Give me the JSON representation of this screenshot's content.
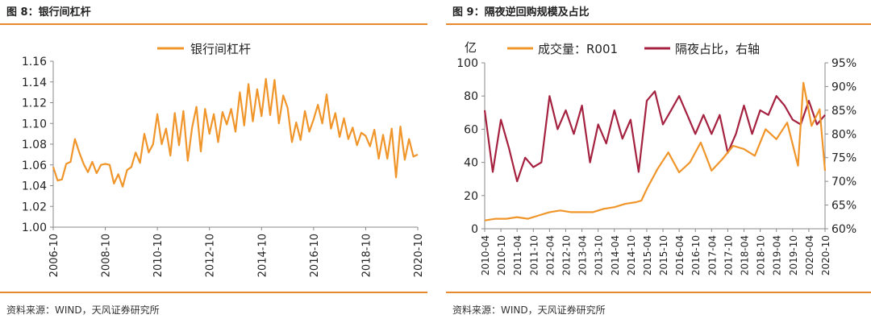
{
  "figures": [
    {
      "title": "图 8：银行间杠杆",
      "source": "资料来源：WIND，天风证券研究所",
      "chart_data": {
        "type": "line",
        "title": "",
        "legend_position": "top-center",
        "grid": false,
        "y_axis": {
          "ylim": [
            1.0,
            1.16
          ],
          "ticks": [
            1.0,
            1.02,
            1.04,
            1.06,
            1.08,
            1.1,
            1.12,
            1.14,
            1.16
          ],
          "tick_labels": [
            "1.00",
            "1.02",
            "1.04",
            "1.06",
            "1.08",
            "1.10",
            "1.12",
            "1.14",
            "1.16"
          ]
        },
        "x_axis": {
          "range": [
            "2006-10",
            "2020-10"
          ],
          "tick_labels": [
            "2006-10",
            "2008-10",
            "2010-10",
            "2012-10",
            "2014-10",
            "2016-10",
            "2018-10",
            "2020-10"
          ]
        },
        "series": [
          {
            "name": "银行间杠杆",
            "color": "#f0952a",
            "x": [
              "2006-10",
              "2006-12",
              "2007-02",
              "2007-04",
              "2007-06",
              "2007-08",
              "2007-10",
              "2007-12",
              "2008-02",
              "2008-04",
              "2008-06",
              "2008-08",
              "2008-10",
              "2008-12",
              "2009-02",
              "2009-04",
              "2009-06",
              "2009-08",
              "2009-10",
              "2009-12",
              "2010-02",
              "2010-04",
              "2010-06",
              "2010-08",
              "2010-10",
              "2010-12",
              "2011-02",
              "2011-04",
              "2011-06",
              "2011-08",
              "2011-10",
              "2011-12",
              "2012-02",
              "2012-04",
              "2012-06",
              "2012-08",
              "2012-10",
              "2012-12",
              "2013-02",
              "2013-04",
              "2013-06",
              "2013-08",
              "2013-10",
              "2013-12",
              "2014-02",
              "2014-04",
              "2014-06",
              "2014-08",
              "2014-10",
              "2014-12",
              "2015-02",
              "2015-04",
              "2015-06",
              "2015-08",
              "2015-10",
              "2015-12",
              "2016-02",
              "2016-04",
              "2016-06",
              "2016-08",
              "2016-10",
              "2016-12",
              "2017-02",
              "2017-04",
              "2017-06",
              "2017-08",
              "2017-10",
              "2017-12",
              "2018-02",
              "2018-04",
              "2018-06",
              "2018-08",
              "2018-10",
              "2018-12",
              "2019-02",
              "2019-04",
              "2019-06",
              "2019-08",
              "2019-10",
              "2019-12",
              "2020-02",
              "2020-04",
              "2020-06",
              "2020-08",
              "2020-10"
            ],
            "values": [
              1.058,
              1.045,
              1.046,
              1.061,
              1.063,
              1.085,
              1.072,
              1.061,
              1.053,
              1.063,
              1.052,
              1.06,
              1.061,
              1.06,
              1.042,
              1.051,
              1.039,
              1.055,
              1.058,
              1.072,
              1.062,
              1.09,
              1.072,
              1.08,
              1.109,
              1.08,
              1.095,
              1.069,
              1.11,
              1.079,
              1.112,
              1.064,
              1.096,
              1.116,
              1.073,
              1.114,
              1.09,
              1.109,
              1.082,
              1.111,
              1.099,
              1.114,
              1.092,
              1.13,
              1.098,
              1.138,
              1.102,
              1.133,
              1.107,
              1.143,
              1.108,
              1.142,
              1.1,
              1.127,
              1.115,
              1.082,
              1.101,
              1.084,
              1.112,
              1.092,
              1.104,
              1.118,
              1.1,
              1.128,
              1.095,
              1.11,
              1.087,
              1.105,
              1.085,
              1.096,
              1.079,
              1.091,
              1.088,
              1.078,
              1.094,
              1.066,
              1.089,
              1.066,
              1.095,
              1.048,
              1.097,
              1.065,
              1.085,
              1.068,
              1.07
            ]
          }
        ]
      }
    },
    {
      "title": "图 9：隔夜逆回购规模及占比",
      "source": "资料来源：WIND，天风证券研究所",
      "chart_data": {
        "type": "line",
        "title": "",
        "legend_position": "top-center",
        "grid": false,
        "y_axis_left": {
          "unit_label": "亿",
          "ylim": [
            0,
            100
          ],
          "ticks": [
            0,
            20,
            40,
            60,
            80,
            100
          ],
          "tick_labels": [
            "0",
            "20",
            "40",
            "60",
            "80",
            "100"
          ]
        },
        "y_axis_right": {
          "ylim": [
            60,
            95
          ],
          "ticks": [
            60,
            65,
            70,
            75,
            80,
            85,
            90,
            95
          ],
          "tick_labels": [
            "60%",
            "65%",
            "70%",
            "75%",
            "80%",
            "85%",
            "90%",
            "95%"
          ]
        },
        "x_axis": {
          "range": [
            "2010-04",
            "2020-10"
          ],
          "tick_labels": [
            "2010-04",
            "2010-10",
            "2011-04",
            "2011-10",
            "2012-04",
            "2012-10",
            "2013-04",
            "2013-10",
            "2014-04",
            "2014-10",
            "2015-04",
            "2015-10",
            "2016-04",
            "2016-10",
            "2017-04",
            "2017-10",
            "2018-04",
            "2018-10",
            "2019-04",
            "2019-10",
            "2020-04",
            "2020-10"
          ]
        },
        "series": [
          {
            "name": "成交量：R001",
            "axis": "left",
            "color": "#f0952a",
            "x": [
              "2010-04",
              "2010-08",
              "2010-12",
              "2011-04",
              "2011-08",
              "2011-12",
              "2012-04",
              "2012-08",
              "2012-12",
              "2013-04",
              "2013-08",
              "2013-12",
              "2014-04",
              "2014-08",
              "2014-12",
              "2015-02",
              "2015-04",
              "2015-08",
              "2015-12",
              "2016-04",
              "2016-08",
              "2016-12",
              "2017-04",
              "2017-08",
              "2017-12",
              "2018-04",
              "2018-08",
              "2018-12",
              "2019-04",
              "2019-08",
              "2019-12",
              "2020-02",
              "2020-05",
              "2020-08",
              "2020-10"
            ],
            "values": [
              5,
              6,
              6,
              7,
              6,
              8,
              10,
              11,
              10,
              10,
              10,
              12,
              13,
              15,
              16,
              17,
              24,
              36,
              46,
              34,
              40,
              52,
              35,
              42,
              50,
              48,
              44,
              60,
              54,
              64,
              38,
              88,
              62,
              72,
              35
            ]
          },
          {
            "name": "隔夜占比，右轴",
            "axis": "right",
            "color": "#a52140",
            "x": [
              "2010-04",
              "2010-07",
              "2010-10",
              "2011-01",
              "2011-04",
              "2011-07",
              "2011-10",
              "2012-01",
              "2012-04",
              "2012-07",
              "2012-10",
              "2013-01",
              "2013-04",
              "2013-07",
              "2013-10",
              "2014-01",
              "2014-04",
              "2014-07",
              "2014-10",
              "2015-01",
              "2015-04",
              "2015-07",
              "2015-10",
              "2016-01",
              "2016-04",
              "2016-07",
              "2016-10",
              "2017-01",
              "2017-04",
              "2017-07",
              "2017-10",
              "2018-01",
              "2018-04",
              "2018-07",
              "2018-10",
              "2019-01",
              "2019-04",
              "2019-07",
              "2019-10",
              "2020-01",
              "2020-04",
              "2020-07",
              "2020-10"
            ],
            "values": [
              85,
              72,
              83,
              77,
              70,
              75,
              73,
              74,
              88,
              81,
              85,
              80,
              86,
              74,
              82,
              78,
              85,
              79,
              83,
              72,
              87,
              89,
              82,
              85,
              88,
              84,
              80,
              84,
              80,
              84,
              76,
              80,
              86,
              80,
              85,
              84,
              88,
              86,
              83,
              82,
              87,
              82,
              84
            ]
          }
        ]
      }
    }
  ]
}
